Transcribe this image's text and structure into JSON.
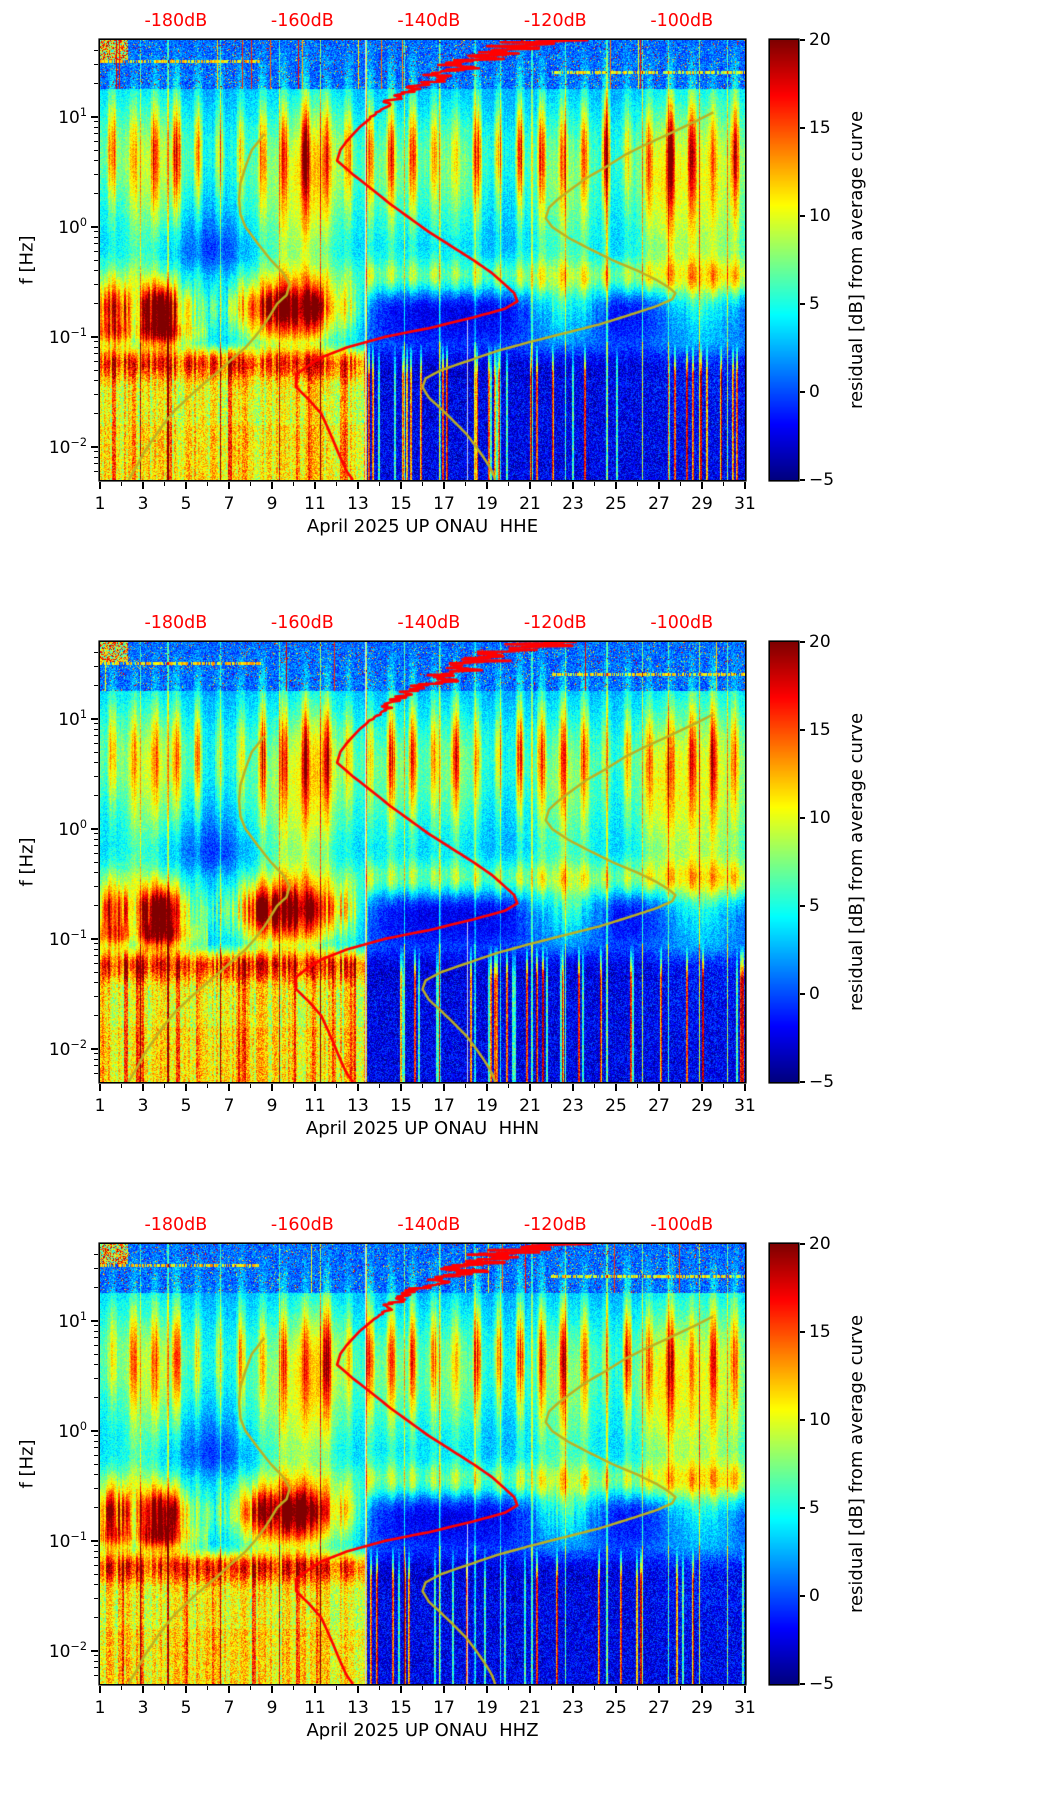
{
  "figure": {
    "panels": [
      {
        "channel": "HHE",
        "xlabel": "April 2025 UP ONAU  HHE",
        "ylabel": "f [Hz]"
      },
      {
        "channel": "HHN",
        "xlabel": "April 2025 UP ONAU  HHN",
        "ylabel": "f [Hz]"
      },
      {
        "channel": "HHZ",
        "xlabel": "April 2025 UP ONAU  HHZ",
        "ylabel": "f [Hz]"
      }
    ],
    "top_axis": {
      "labels": [
        "-180dB",
        "-160dB",
        "-140dB",
        "-120dB",
        "-100dB"
      ],
      "values_db": [
        -180,
        -160,
        -140,
        -120,
        -100
      ],
      "range_db": [
        -192,
        -90
      ],
      "color": "#ff0000"
    },
    "x_axis": {
      "tick_labels": [
        1,
        3,
        5,
        7,
        9,
        11,
        13,
        15,
        17,
        19,
        21,
        23,
        25,
        27,
        29,
        31
      ],
      "range_days": [
        1,
        31
      ]
    },
    "y_axis": {
      "scale": "log",
      "range_hz": [
        0.005,
        50
      ],
      "tick_exponents": [
        1,
        0,
        -1,
        -2
      ]
    },
    "colorbar": {
      "label": "residual [dB] from average curve",
      "ticks": [
        20,
        15,
        10,
        5,
        0,
        -5
      ],
      "min": -5,
      "max": 20,
      "colormap": "jet"
    },
    "curve_colors": {
      "psd_curve": "#ff0000",
      "reference_curves": "#bdb022"
    }
  },
  "chart_data": [
    {
      "type": "heatmap",
      "subplot": 1,
      "title": "",
      "xlabel": "April 2025 UP ONAU  HHE",
      "ylabel": "f [Hz]",
      "x": {
        "unit": "day of April 2025",
        "ticks": [
          1,
          3,
          5,
          7,
          9,
          11,
          13,
          15,
          17,
          19,
          21,
          23,
          25,
          27,
          29,
          31
        ],
        "range": [
          1,
          31
        ]
      },
      "y": {
        "unit": "Hz",
        "scale": "log",
        "range": [
          0.005,
          50
        ],
        "ticks": [
          0.01,
          0.1,
          1,
          10
        ]
      },
      "z": {
        "label": "residual [dB] from average curve",
        "range": [
          -5,
          20
        ],
        "ticks": [
          -5,
          0,
          5,
          10,
          15,
          20
        ],
        "colormap": "jet"
      },
      "top_axis": {
        "unit": "dB",
        "ticks": [
          -180,
          -160,
          -140,
          -120,
          -100
        ],
        "range": [
          -192,
          -90
        ],
        "applies_to": "overlaid PSD curves"
      },
      "series": [
        {
          "name": "station PSD curve",
          "color": "#ff0000",
          "points_f_hz_vs_db": [
            [
              50,
              -117
            ],
            [
              48,
              -125
            ],
            [
              46,
              -120
            ],
            [
              44,
              -128
            ],
            [
              42,
              -125
            ],
            [
              40,
              -131
            ],
            [
              38,
              -128
            ],
            [
              36,
              -133
            ],
            [
              34,
              -130
            ],
            [
              32,
              -134
            ],
            [
              30,
              -136
            ],
            [
              28,
              -133
            ],
            [
              26,
              -137
            ],
            [
              24,
              -139
            ],
            [
              22,
              -137
            ],
            [
              20,
              -141
            ],
            [
              18,
              -143
            ],
            [
              16,
              -144
            ],
            [
              14,
              -146
            ],
            [
              12,
              -147
            ],
            [
              10,
              -149
            ],
            [
              8,
              -151
            ],
            [
              6,
              -153
            ],
            [
              5,
              -154
            ],
            [
              4,
              -154.5
            ],
            [
              3,
              -152
            ],
            [
              2.2,
              -149
            ],
            [
              1.6,
              -146
            ],
            [
              1.2,
              -143
            ],
            [
              0.9,
              -140
            ],
            [
              0.7,
              -137
            ],
            [
              0.5,
              -133
            ],
            [
              0.38,
              -130
            ],
            [
              0.3,
              -128
            ],
            [
              0.25,
              -126.5
            ],
            [
              0.21,
              -126
            ],
            [
              0.18,
              -128
            ],
            [
              0.15,
              -133
            ],
            [
              0.12,
              -140
            ],
            [
              0.1,
              -147
            ],
            [
              0.08,
              -153
            ],
            [
              0.065,
              -157
            ],
            [
              0.055,
              -159
            ],
            [
              0.045,
              -161
            ],
            [
              0.035,
              -161
            ],
            [
              0.027,
              -159
            ],
            [
              0.02,
              -157
            ],
            [
              0.015,
              -156
            ],
            [
              0.011,
              -155
            ],
            [
              0.008,
              -154
            ],
            [
              0.006,
              -153
            ],
            [
              0.005,
              -152
            ]
          ]
        },
        {
          "name": "reference noise model (low)",
          "color": "#bdb022",
          "points_f_hz_vs_db": [
            [
              7,
              -166
            ],
            [
              5,
              -168
            ],
            [
              3.5,
              -169
            ],
            [
              2.5,
              -169.8
            ],
            [
              1.8,
              -170
            ],
            [
              1.3,
              -169.8
            ],
            [
              1,
              -169
            ],
            [
              0.7,
              -167
            ],
            [
              0.5,
              -165
            ],
            [
              0.38,
              -163
            ],
            [
              0.3,
              -162
            ],
            [
              0.24,
              -162.5
            ],
            [
              0.2,
              -164
            ],
            [
              0.16,
              -165
            ],
            [
              0.13,
              -166
            ],
            [
              0.1,
              -167.5
            ],
            [
              0.08,
              -169
            ],
            [
              0.06,
              -171.5
            ],
            [
              0.05,
              -173
            ],
            [
              0.04,
              -175
            ],
            [
              0.03,
              -177.5
            ],
            [
              0.022,
              -180
            ],
            [
              0.016,
              -182
            ],
            [
              0.012,
              -183.5
            ],
            [
              0.009,
              -185
            ],
            [
              0.007,
              -186
            ],
            [
              0.005,
              -187.5
            ]
          ]
        },
        {
          "name": "reference noise model (high)",
          "color": "#bdb022",
          "points_f_hz_vs_db": [
            [
              11,
              -95
            ],
            [
              9,
              -98
            ],
            [
              7,
              -102
            ],
            [
              5.5,
              -106
            ],
            [
              4.5,
              -109
            ],
            [
              3.5,
              -112
            ],
            [
              2.8,
              -115
            ],
            [
              2.2,
              -117.5
            ],
            [
              1.8,
              -119.5
            ],
            [
              1.5,
              -121
            ],
            [
              1.2,
              -121.5
            ],
            [
              1.0,
              -120.5
            ],
            [
              0.8,
              -118
            ],
            [
              0.65,
              -115
            ],
            [
              0.5,
              -111
            ],
            [
              0.4,
              -107
            ],
            [
              0.33,
              -104
            ],
            [
              0.28,
              -102
            ],
            [
              0.25,
              -101
            ],
            [
              0.22,
              -101.5
            ],
            [
              0.19,
              -104
            ],
            [
              0.16,
              -108
            ],
            [
              0.13,
              -113
            ],
            [
              0.11,
              -118
            ],
            [
              0.09,
              -124
            ],
            [
              0.075,
              -129
            ],
            [
              0.06,
              -134
            ],
            [
              0.05,
              -138
            ],
            [
              0.042,
              -140.5
            ],
            [
              0.035,
              -141
            ],
            [
              0.028,
              -140
            ],
            [
              0.022,
              -138
            ],
            [
              0.017,
              -136
            ],
            [
              0.013,
              -134
            ],
            [
              0.01,
              -132.5
            ],
            [
              0.0075,
              -131
            ],
            [
              0.006,
              -130
            ],
            [
              0.005,
              -129.5
            ]
          ]
        }
      ],
      "notable_features": [
        "strong secondary-microseism residuals (+15 to +20 dB, dark red) near 0.1-0.3 Hz during Apr 1-13, strongest Apr 3-4 and Apr 8-11",
        "broadband elevated residual (+8 to +15 dB, yellow/orange) below 0.05 Hz during Apr 1-13 with vertical streaking",
        "quiet (negative residual, dark blue) below 0.3 Hz after Apr 13 with sparse narrow transient spikes",
        "diurnal vertical striping (+5 to +12 dB) between 0.5 and 20 Hz throughout the month",
        "speckled noise above 20 Hz with occasional horizontal line features",
        "narrow full-band transient spikes on several days; pale masked column near Apr 13"
      ]
    },
    {
      "type": "heatmap",
      "subplot": 2,
      "xlabel": "April 2025 UP ONAU  HHN",
      "ylabel": "f [Hz]",
      "x": {
        "unit": "day of April 2025",
        "ticks": [
          1,
          3,
          5,
          7,
          9,
          11,
          13,
          15,
          17,
          19,
          21,
          23,
          25,
          27,
          29,
          31
        ],
        "range": [
          1,
          31
        ]
      },
      "y": {
        "unit": "Hz",
        "scale": "log",
        "range": [
          0.005,
          50
        ],
        "ticks": [
          0.01,
          0.1,
          1,
          10
        ]
      },
      "z": {
        "label": "residual [dB] from average curve",
        "range": [
          -5,
          20
        ],
        "ticks": [
          -5,
          0,
          5,
          10,
          15,
          20
        ],
        "colormap": "jet"
      },
      "top_axis": {
        "unit": "dB",
        "ticks": [
          -180,
          -160,
          -140,
          -120,
          -100
        ],
        "range": [
          -192,
          -90
        ]
      },
      "overlay_series": "same curves as subplot 1",
      "notable_features": "same pattern as subplot 1 (HHN component)"
    },
    {
      "type": "heatmap",
      "subplot": 3,
      "xlabel": "April 2025 UP ONAU  HHZ",
      "ylabel": "f [Hz]",
      "x": {
        "unit": "day of April 2025",
        "ticks": [
          1,
          3,
          5,
          7,
          9,
          11,
          13,
          15,
          17,
          19,
          21,
          23,
          25,
          27,
          29,
          31
        ],
        "range": [
          1,
          31
        ]
      },
      "y": {
        "unit": "Hz",
        "scale": "log",
        "range": [
          0.005,
          50
        ],
        "ticks": [
          0.01,
          0.1,
          1,
          10
        ]
      },
      "z": {
        "label": "residual [dB] from average curve",
        "range": [
          -5,
          20
        ],
        "ticks": [
          -5,
          0,
          5,
          10,
          15,
          20
        ],
        "colormap": "jet"
      },
      "top_axis": {
        "unit": "dB",
        "ticks": [
          -180,
          -160,
          -140,
          -120,
          -100
        ],
        "range": [
          -192,
          -90
        ]
      },
      "overlay_series": "same curves as subplot 1",
      "notable_features": "same pattern as subplot 1 (HHZ component)"
    }
  ]
}
